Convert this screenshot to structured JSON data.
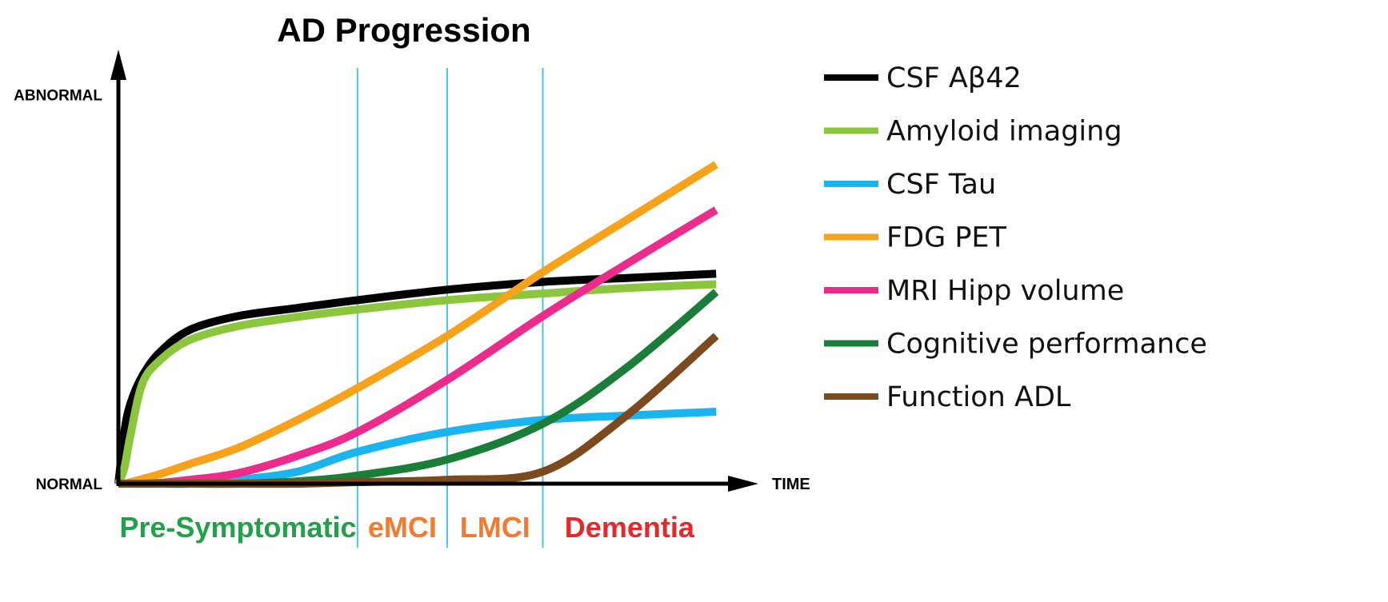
{
  "chart_data": {
    "type": "line",
    "title": "AD Progression",
    "x_label": "TIME",
    "x": [
      0,
      1,
      2,
      4,
      7,
      12,
      20,
      30,
      40,
      55,
      71,
      85,
      100
    ],
    "xlim": [
      0,
      106
    ],
    "ylim": [
      0,
      110
    ],
    "yticks": [
      {
        "value": 0,
        "label": "NORMAL"
      },
      {
        "value": 100,
        "label": "ABNORMAL"
      }
    ],
    "dividers": [
      40,
      55,
      71
    ],
    "divider_color": "#4ec3e0",
    "phases": [
      {
        "label": "Pre-Symptomatic",
        "color": "#22a04b"
      },
      {
        "label": "eMCI",
        "color": "#f47a30"
      },
      {
        "label": "LMCI",
        "color": "#f47a30"
      },
      {
        "label": "Dementia",
        "color": "#e8272a"
      }
    ],
    "series": [
      {
        "name": "CSF Aβ42",
        "color": "#000000",
        "values": [
          0,
          13.3,
          20.5,
          27.7,
          33.9,
          39.6,
          43.1,
          45.2,
          47.2,
          49.9,
          51.9,
          52.9,
          54.0
        ]
      },
      {
        "name": "Amyloid imaging",
        "color": "#8cc63f",
        "values": [
          0,
          4.1,
          12.3,
          25.7,
          31.8,
          37,
          40.5,
          42.9,
          44.8,
          47.2,
          48.9,
          50.3,
          51.3
        ]
      },
      {
        "name": "CSF Tau",
        "color": "#1ab4ee",
        "values": [
          0,
          0,
          0,
          0,
          0,
          0,
          1,
          3.1,
          8.2,
          13.3,
          16.4,
          17.5,
          18.5
        ]
      },
      {
        "name": "FDG PET",
        "color": "#f7a21b",
        "values": [
          0,
          0,
          0.4,
          1.2,
          2.5,
          5.1,
          9.2,
          16.4,
          24.6,
          38,
          54.4,
          67.8,
          82.1
        ]
      },
      {
        "name": "MRI Hipp volume",
        "color": "#ec2c8c",
        "values": [
          0,
          0,
          0,
          0,
          0.2,
          1,
          2.7,
          7.2,
          13.3,
          26.7,
          43.1,
          56.5,
          70.4
        ]
      },
      {
        "name": "Cognitive performance",
        "color": "#1b7d3a",
        "values": [
          0,
          0,
          0,
          0,
          0,
          0,
          0,
          0.6,
          2.1,
          6.2,
          15.4,
          29.8,
          49.3
        ]
      },
      {
        "name": "Function ADL",
        "color": "#7b4a1e",
        "values": [
          0,
          0,
          0,
          0,
          0,
          0,
          0,
          0,
          0.4,
          1,
          3.1,
          17.5,
          38
        ]
      }
    ]
  }
}
